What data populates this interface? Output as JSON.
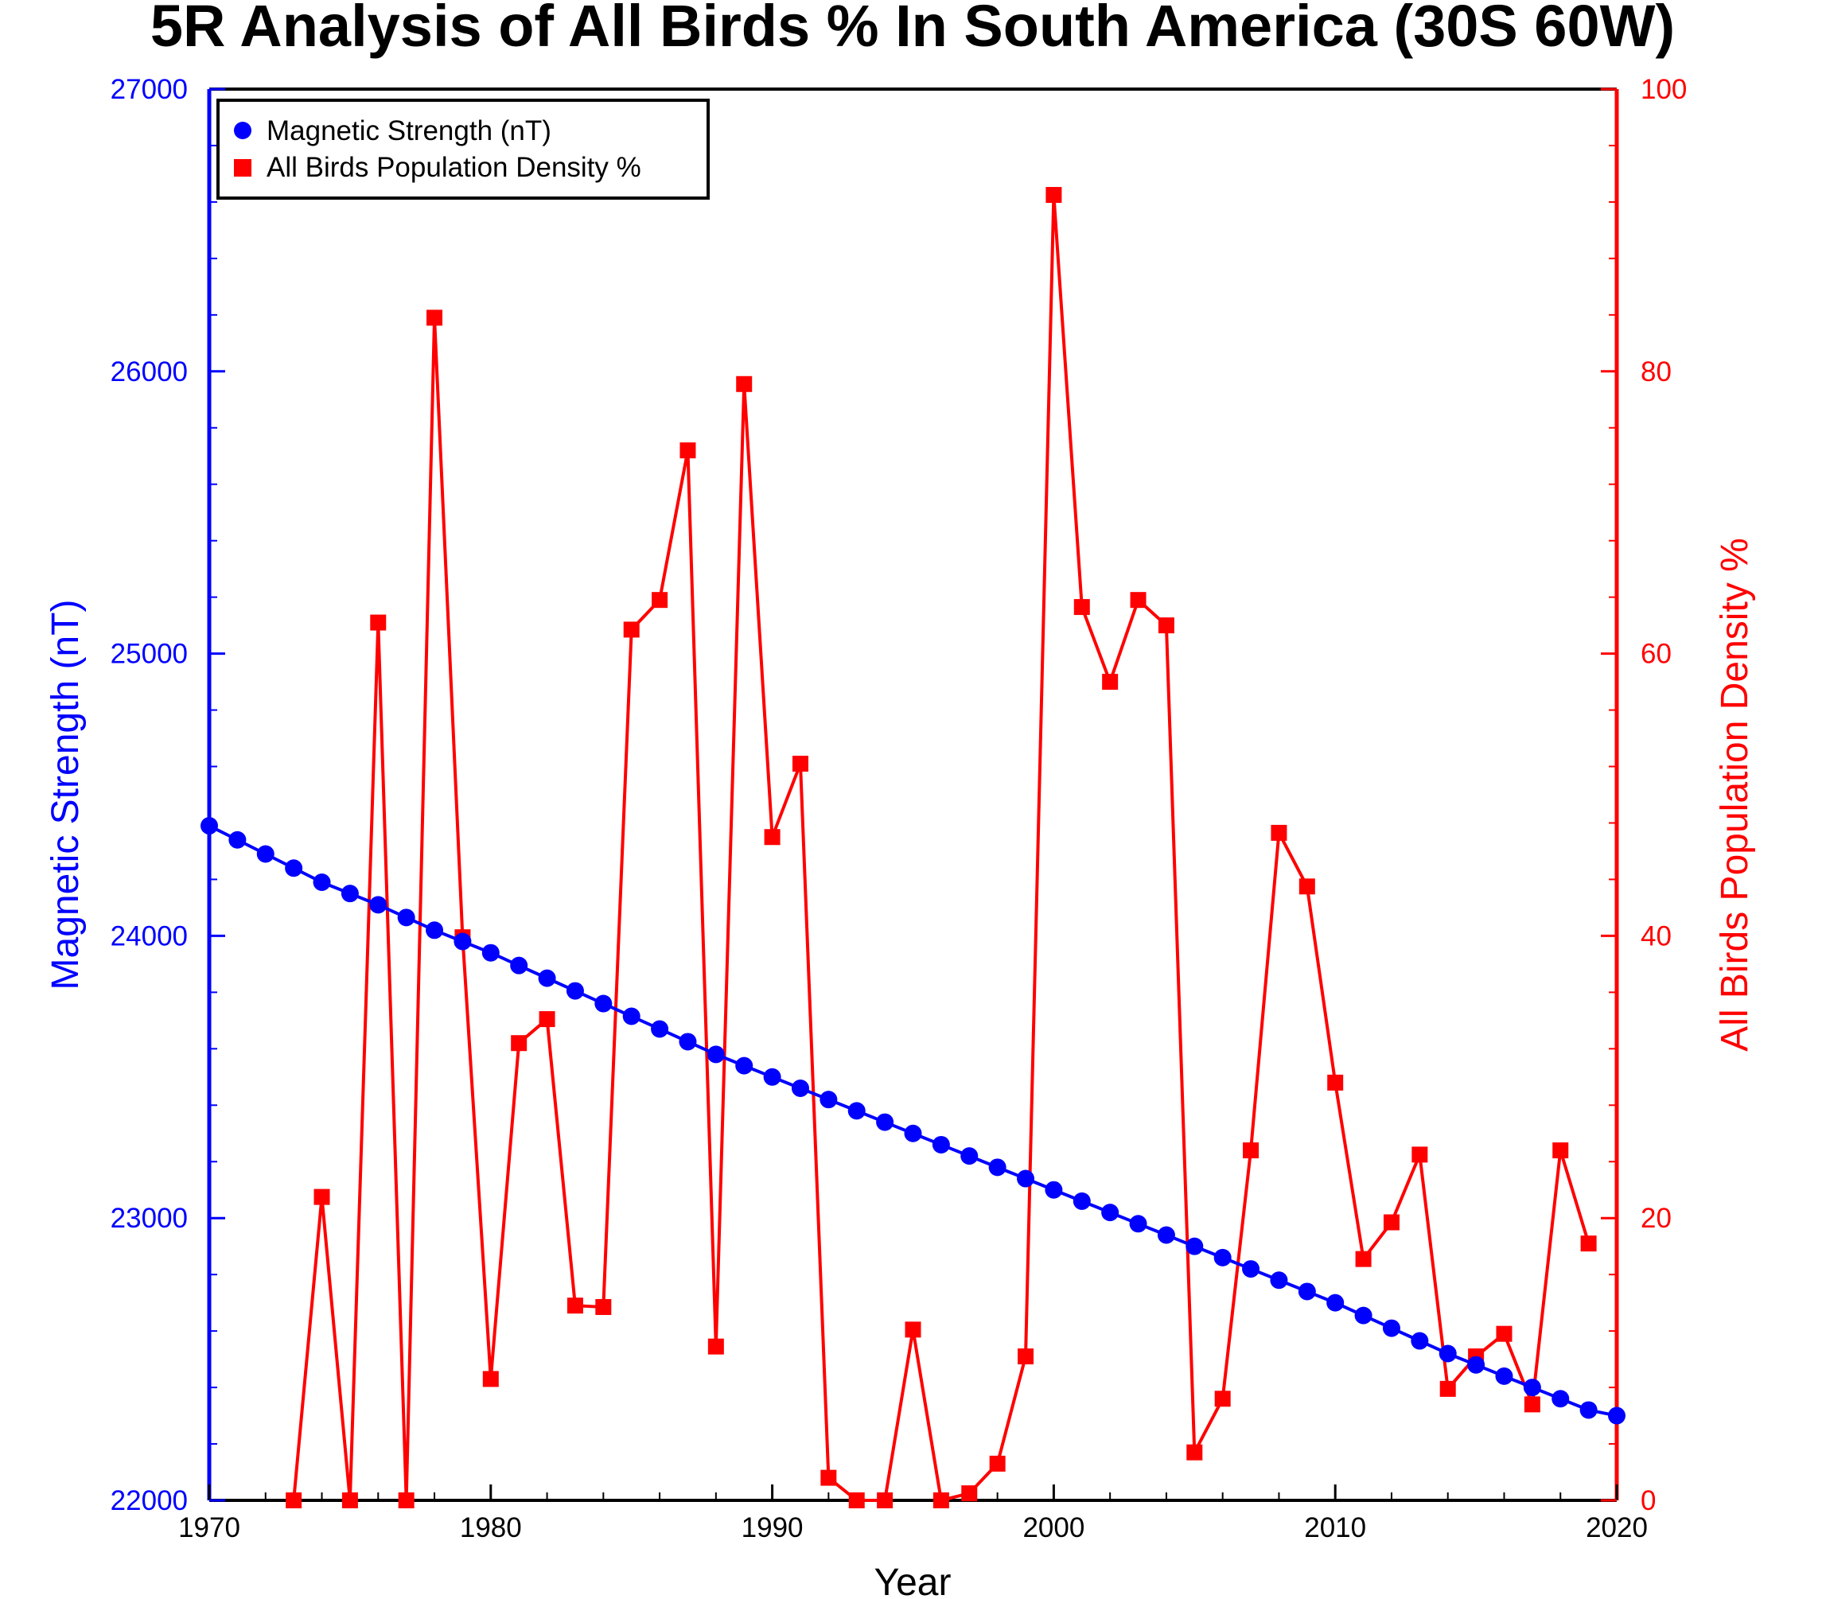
{
  "chart_data": {
    "type": "line",
    "title": "5R Analysis of All Birds % In South America (30S 60W)",
    "xlabel": "Year",
    "ylabel_left": "Magnetic Strength (nT)",
    "ylabel_right": "All Birds Population Density %",
    "xlim": [
      1970,
      2020
    ],
    "ylim_left": [
      22000,
      27000
    ],
    "ylim_right": [
      0,
      100
    ],
    "xticks": [
      "1970",
      "1980",
      "1990",
      "2000",
      "2010",
      "2020"
    ],
    "yticks_left": [
      "22000",
      "23000",
      "24000",
      "25000",
      "26000",
      "27000"
    ],
    "yticks_right": [
      "0",
      "20",
      "40",
      "60",
      "80",
      "100"
    ],
    "grid": false,
    "legend_position": "top-left",
    "series": [
      {
        "name": "Magnetic Strength (nT)",
        "axis": "left",
        "marker": "circle",
        "color": "#0000ff",
        "x": [
          1970,
          1971,
          1972,
          1973,
          1974,
          1975,
          1976,
          1977,
          1978,
          1979,
          1980,
          1981,
          1982,
          1983,
          1984,
          1985,
          1986,
          1987,
          1988,
          1989,
          1990,
          1991,
          1992,
          1993,
          1994,
          1995,
          1996,
          1997,
          1998,
          1999,
          2000,
          2001,
          2002,
          2003,
          2004,
          2005,
          2006,
          2007,
          2008,
          2009,
          2010,
          2011,
          2012,
          2013,
          2014,
          2015,
          2016,
          2017,
          2018,
          2019,
          2020
        ],
        "values": [
          24390,
          24340,
          24290,
          24240,
          24190,
          24150,
          24110,
          24065,
          24020,
          23980,
          23940,
          23895,
          23850,
          23805,
          23760,
          23715,
          23670,
          23625,
          23580,
          23540,
          23500,
          23460,
          23420,
          23380,
          23340,
          23300,
          23260,
          23220,
          23180,
          23140,
          23100,
          23060,
          23020,
          22980,
          22940,
          22900,
          22860,
          22820,
          22780,
          22740,
          22700,
          22655,
          22610,
          22565,
          22520,
          22480,
          22440,
          22400,
          22360,
          22320,
          22300
        ]
      },
      {
        "name": "All Birds Population Density %",
        "axis": "right",
        "marker": "square",
        "color": "#ff0000",
        "x": [
          1973,
          1974,
          1975,
          1976,
          1977,
          1978,
          1979,
          1980,
          1981,
          1982,
          1983,
          1984,
          1985,
          1986,
          1987,
          1988,
          1989,
          1990,
          1991,
          1992,
          1993,
          1994,
          1995,
          1996,
          1997,
          1998,
          1999,
          2000,
          2001,
          2002,
          2003,
          2004,
          2005,
          2006,
          2007,
          2008,
          2009,
          2010,
          2011,
          2012,
          2013,
          2014,
          2015,
          2016,
          2017,
          2018,
          2019
        ],
        "values": [
          0,
          21.5,
          0,
          62.2,
          0,
          83.8,
          39.9,
          8.6,
          32.4,
          34.1,
          13.8,
          13.7,
          61.7,
          63.8,
          74.4,
          10.9,
          79.1,
          47.0,
          52.2,
          1.6,
          0,
          0,
          12.1,
          0,
          0.5,
          2.6,
          10.2,
          92.5,
          63.3,
          58.0,
          63.8,
          62.0,
          3.4,
          7.2,
          24.8,
          47.3,
          43.5,
          29.6,
          17.1,
          19.7,
          24.5,
          7.9,
          10.2,
          11.8,
          6.8,
          24.8,
          18.2
        ]
      }
    ],
    "colors": {
      "title": "#000000",
      "left_axis": "#0000ff",
      "right_axis": "#ff0000",
      "frame": "#000000"
    }
  }
}
